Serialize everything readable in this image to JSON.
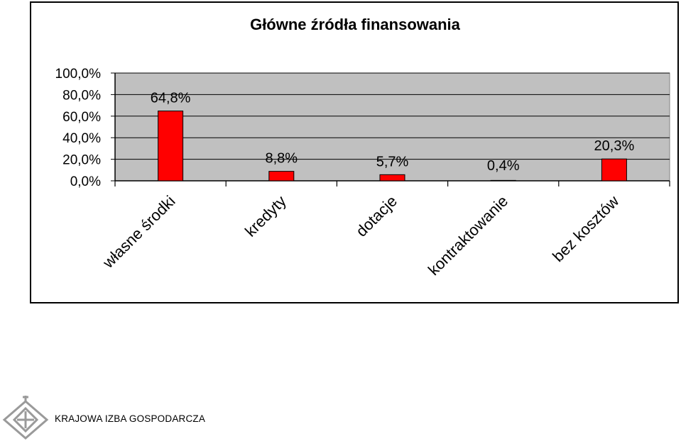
{
  "chart_data": {
    "type": "bar",
    "title": "Główne źródła finansowania",
    "categories": [
      "własne środki",
      "kredyty",
      "dotacje",
      "kontraktowanie",
      "bez kosztów"
    ],
    "values": [
      64.8,
      8.8,
      5.7,
      0.4,
      20.3
    ],
    "data_labels": [
      "64,8%",
      "8,8%",
      "5,7%",
      "0,4%",
      "20,3%"
    ],
    "ylim": [
      0,
      100
    ],
    "yticks": [
      0,
      20,
      40,
      60,
      80,
      100
    ],
    "ytick_labels": [
      "0,0%",
      "20,0%",
      "40,0%",
      "60,0%",
      "80,0%",
      "100,0%"
    ],
    "grid": true,
    "legend": false,
    "colors": {
      "bar": "#ff0000",
      "plot_area": "#c0c0c0",
      "grid": "#000000"
    }
  },
  "footer": {
    "organization": "KRAJOWA IZBA GOSPODARCZA"
  }
}
